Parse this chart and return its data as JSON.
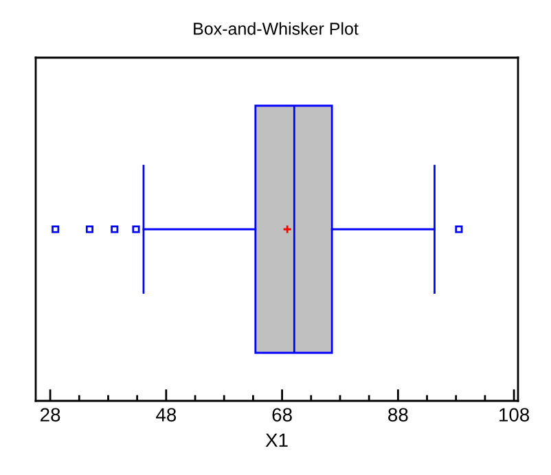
{
  "chart_data": {
    "type": "box",
    "title": "Box-and-Whisker Plot",
    "xlabel": "X1",
    "orientation": "horizontal",
    "categories": [
      null
    ],
    "tick_labels": "x",
    "grid": false,
    "legend": false,
    "series": [
      {
        "color": "#0000ff",
        "boxes": [
          {
            "low": 44.1,
            "q1": 63.4,
            "median": 70.1,
            "q3": 76.6,
            "high": 94.3,
            "mean": 68.9,
            "outliers": [
              28.9,
              34.8,
              39.1,
              42.8,
              98.5
            ]
          }
        ]
      }
    ],
    "xlim": [
      25.5,
      108.7
    ],
    "xticks": [
      28,
      48,
      68,
      88,
      108
    ]
  }
}
